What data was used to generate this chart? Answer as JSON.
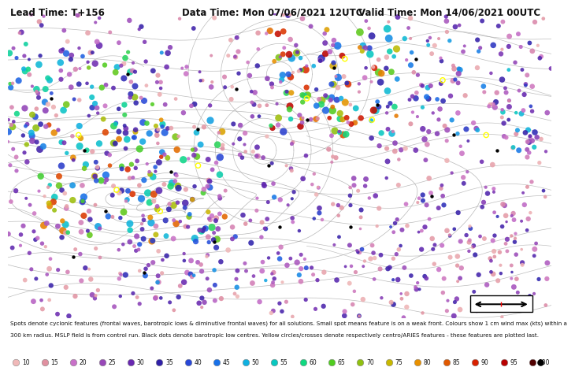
{
  "title_left": "Lead Time: T+156",
  "title_center": "Data Time: Mon 07/06/2021 12UTC",
  "title_right": "Valid Time: Mon 14/06/2021 00UTC",
  "title_fontsize": 8.5,
  "footer_text1": "Spots denote cyclonic features (frontal waves, barotropic lows & diminutive frontal waves) for all solutions. Small spot means feature is on a weak front. Colours show 1 cm wind max (kts) within a",
  "footer_text2": "300 km radius. MSLP field is from control run. Black dots denote barotropic low centres. Yellow circles/crosses denote respectively centro/ARIES features - these features are plotted last.",
  "colorbar_values": [
    10,
    15,
    20,
    25,
    30,
    35,
    40,
    45,
    50,
    55,
    60,
    65,
    70,
    75,
    80,
    85,
    90,
    95,
    100
  ],
  "colorbar_colors": [
    "#f0b8b8",
    "#e090a0",
    "#c870c8",
    "#9848b8",
    "#6828b0",
    "#3020a8",
    "#2848d8",
    "#1870e8",
    "#10b0e0",
    "#08c8c0",
    "#10d880",
    "#50cc20",
    "#90c010",
    "#c8b800",
    "#e89000",
    "#e05800",
    "#d82000",
    "#b80000",
    "#500000"
  ],
  "background_color": "#ffffff",
  "contour_color": "#999999",
  "fig_width": 6.9,
  "fig_height": 4.75
}
